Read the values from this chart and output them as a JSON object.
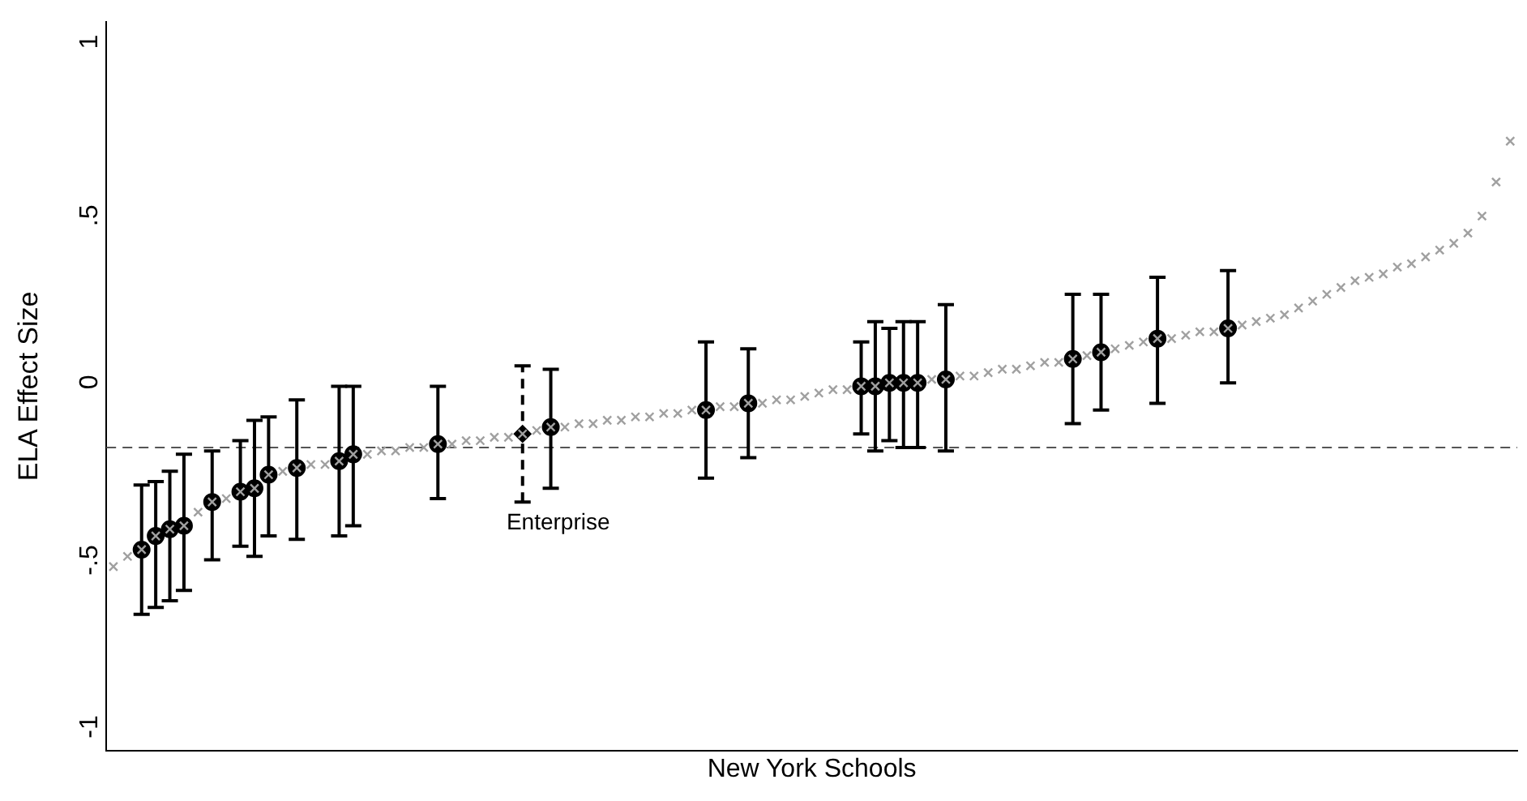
{
  "chart_data": {
    "type": "scatter",
    "xlabel": "New York Schools",
    "ylabel": "ELA Effect Size",
    "tick_labels": "y",
    "categories": [
      null,
      null,
      null,
      null,
      null,
      null,
      null,
      null,
      null,
      null,
      null,
      null,
      null,
      null,
      null,
      null,
      null,
      null,
      null,
      null,
      null,
      null,
      null,
      null,
      null,
      null,
      null,
      null,
      null,
      null,
      null,
      null,
      null,
      null,
      null,
      null,
      null,
      null,
      null,
      null,
      null,
      null,
      null,
      null,
      null,
      null,
      null,
      null,
      null,
      null,
      null,
      null,
      null,
      null,
      null,
      null,
      null,
      null,
      null,
      null,
      null,
      null,
      null,
      null,
      null,
      null,
      null,
      null,
      null,
      null,
      null,
      null,
      null,
      null,
      null,
      null,
      null,
      null,
      null,
      null,
      null,
      null,
      null,
      null,
      null,
      null,
      null,
      null,
      null,
      null,
      null,
      null,
      null,
      null,
      null,
      null,
      null,
      null,
      null,
      null
    ],
    "ylim": [
      -1.07,
      1.07
    ],
    "yticks": [
      {
        "value": -1,
        "label": "-1"
      },
      {
        "value": -0.5,
        "label": "-.5"
      },
      0,
      {
        "value": 0.5,
        "label": ".5"
      },
      1
    ],
    "ref_lines": [
      {
        "axis": "y",
        "value": -0.18,
        "color": "#555555",
        "line_style": "dashed"
      }
    ],
    "series": [
      {
        "color": "#a0a0a0",
        "marker": "cross",
        "values": [
          -0.53,
          -0.5,
          -0.48,
          -0.44,
          -0.42,
          -0.41,
          -0.37,
          -0.34,
          -0.33,
          -0.31,
          -0.3,
          -0.26,
          -0.25,
          -0.24,
          -0.23,
          -0.23,
          -0.22,
          -0.2,
          -0.2,
          -0.19,
          -0.19,
          -0.18,
          -0.18,
          -0.17,
          -0.17,
          -0.16,
          -0.16,
          -0.15,
          -0.15,
          -0.14,
          -0.13,
          -0.12,
          -0.12,
          -0.11,
          -0.11,
          -0.1,
          -0.1,
          -0.09,
          -0.09,
          -0.08,
          -0.08,
          -0.07,
          -0.07,
          -0.06,
          -0.06,
          -0.05,
          -0.05,
          -0.04,
          -0.04,
          -0.03,
          -0.02,
          -0.01,
          -0.01,
          0.0,
          0.0,
          0.01,
          0.01,
          0.01,
          0.02,
          0.02,
          0.03,
          0.03,
          0.04,
          0.05,
          0.05,
          0.06,
          0.07,
          0.07,
          0.08,
          0.09,
          0.1,
          0.11,
          0.12,
          0.13,
          0.14,
          0.14,
          0.15,
          0.16,
          0.16,
          0.17,
          0.18,
          0.19,
          0.2,
          0.21,
          0.23,
          0.25,
          0.27,
          0.29,
          0.31,
          0.32,
          0.33,
          0.35,
          0.36,
          0.38,
          0.4,
          0.42,
          0.45,
          0.5,
          0.6,
          0.72
        ]
      },
      {
        "color": "#000000",
        "marker": "circle",
        "values": [
          null,
          null,
          -0.48,
          -0.44,
          -0.42,
          -0.41,
          null,
          -0.34,
          null,
          -0.31,
          -0.3,
          -0.26,
          null,
          -0.24,
          null,
          null,
          -0.22,
          -0.2,
          null,
          null,
          null,
          null,
          null,
          -0.17,
          null,
          null,
          null,
          null,
          null,
          null,
          null,
          -0.12,
          null,
          null,
          null,
          null,
          null,
          null,
          null,
          null,
          null,
          null,
          -0.07,
          null,
          null,
          -0.05,
          null,
          null,
          null,
          null,
          null,
          null,
          null,
          0.0,
          0.0,
          0.01,
          0.01,
          0.01,
          null,
          0.02,
          null,
          null,
          null,
          null,
          null,
          null,
          null,
          null,
          0.08,
          null,
          0.1,
          null,
          null,
          null,
          0.14,
          null,
          null,
          null,
          null,
          0.17,
          null,
          null,
          null,
          null,
          null,
          null,
          null,
          null,
          null,
          null,
          null,
          null,
          null,
          null,
          null,
          null,
          null,
          null,
          null,
          null
        ],
        "errors": [
          null,
          null,
          [
            -0.67,
            -0.29
          ],
          [
            -0.65,
            -0.28
          ],
          [
            -0.63,
            -0.25
          ],
          [
            -0.6,
            -0.2
          ],
          null,
          [
            -0.51,
            -0.19
          ],
          null,
          [
            -0.47,
            -0.16
          ],
          [
            -0.5,
            -0.1
          ],
          [
            -0.44,
            -0.09
          ],
          null,
          [
            -0.45,
            -0.04
          ],
          null,
          null,
          [
            -0.44,
            0.0
          ],
          [
            -0.41,
            0.0
          ],
          null,
          null,
          null,
          null,
          null,
          [
            -0.33,
            0.0
          ],
          null,
          null,
          null,
          null,
          null,
          null,
          null,
          [
            -0.3,
            0.05
          ],
          null,
          null,
          null,
          null,
          null,
          null,
          null,
          null,
          null,
          null,
          [
            -0.27,
            0.13
          ],
          null,
          null,
          [
            -0.21,
            0.11
          ],
          null,
          null,
          null,
          null,
          null,
          null,
          null,
          [
            -0.14,
            0.13
          ],
          [
            -0.19,
            0.19
          ],
          [
            -0.16,
            0.17
          ],
          [
            -0.18,
            0.19
          ],
          [
            -0.18,
            0.19
          ],
          null,
          [
            -0.19,
            0.24
          ],
          null,
          null,
          null,
          null,
          null,
          null,
          null,
          null,
          [
            -0.11,
            0.27
          ],
          null,
          [
            -0.07,
            0.27
          ],
          null,
          null,
          null,
          [
            -0.05,
            0.32
          ],
          null,
          null,
          null,
          null,
          [
            0.01,
            0.34
          ],
          null,
          null,
          null,
          null,
          null,
          null,
          null,
          null,
          null,
          null,
          null,
          null,
          null,
          null,
          null,
          null,
          null,
          null,
          null,
          null
        ]
      },
      {
        "name": "Enterprise",
        "color": "#000000",
        "marker": "diamond",
        "line_style": "dashed",
        "values": [
          null,
          null,
          null,
          null,
          null,
          null,
          null,
          null,
          null,
          null,
          null,
          null,
          null,
          null,
          null,
          null,
          null,
          null,
          null,
          null,
          null,
          null,
          null,
          null,
          null,
          null,
          null,
          null,
          null,
          -0.14,
          null,
          null,
          null,
          null,
          null,
          null,
          null,
          null,
          null,
          null,
          null,
          null,
          null,
          null,
          null,
          null,
          null,
          null,
          null,
          null,
          null,
          null,
          null,
          null,
          null,
          null,
          null,
          null,
          null,
          null,
          null,
          null,
          null,
          null,
          null,
          null,
          null,
          null,
          null,
          null,
          null,
          null,
          null,
          null,
          null,
          null,
          null,
          null,
          null,
          null,
          null,
          null,
          null,
          null,
          null,
          null,
          null,
          null,
          null,
          null,
          null,
          null,
          null,
          null,
          null,
          null,
          null,
          null,
          null,
          null
        ],
        "errors": [
          null,
          null,
          null,
          null,
          null,
          null,
          null,
          null,
          null,
          null,
          null,
          null,
          null,
          null,
          null,
          null,
          null,
          null,
          null,
          null,
          null,
          null,
          null,
          null,
          null,
          null,
          null,
          null,
          null,
          [
            -0.34,
            0.06
          ],
          null,
          null,
          null,
          null,
          null,
          null,
          null,
          null,
          null,
          null,
          null,
          null,
          null,
          null,
          null,
          null,
          null,
          null,
          null,
          null,
          null,
          null,
          null,
          null,
          null,
          null,
          null,
          null,
          null,
          null,
          null,
          null,
          null,
          null,
          null,
          null,
          null,
          null,
          null,
          null,
          null,
          null,
          null,
          null,
          null,
          null,
          null,
          null,
          null,
          null,
          null,
          null,
          null,
          null,
          null,
          null,
          null,
          null,
          null,
          null,
          null,
          null,
          null,
          null,
          null,
          null,
          null,
          null,
          null,
          null
        ]
      }
    ]
  }
}
